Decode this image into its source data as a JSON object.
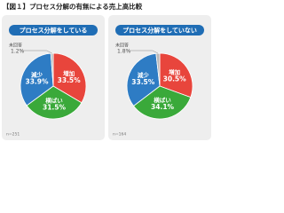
{
  "title": "【図１】プロセス分解の有無による売上高比較",
  "chart_data": [
    {
      "type": "pie",
      "title": "プロセス分解をしている",
      "categories": [
        "増加",
        "横ばい",
        "減少",
        "未回答"
      ],
      "values": [
        33.5,
        31.5,
        33.9,
        1.2
      ],
      "value_labels": [
        "33.5%",
        "31.5%",
        "33.9%",
        "1.2%"
      ],
      "colors": [
        "#e8453c",
        "#3aa93a",
        "#2e7cc4",
        "#b9b9b9"
      ],
      "note": "n=251"
    },
    {
      "type": "pie",
      "title": "プロセス分解をしていない",
      "categories": [
        "増加",
        "横ばい",
        "減少",
        "未回答"
      ],
      "values": [
        30.5,
        34.1,
        33.5,
        1.8
      ],
      "value_labels": [
        "30.5%",
        "34.1%",
        "33.5%",
        "1.8%"
      ],
      "colors": [
        "#e8453c",
        "#3aa93a",
        "#2e7cc4",
        "#b9b9b9"
      ],
      "note": "n=164"
    }
  ]
}
